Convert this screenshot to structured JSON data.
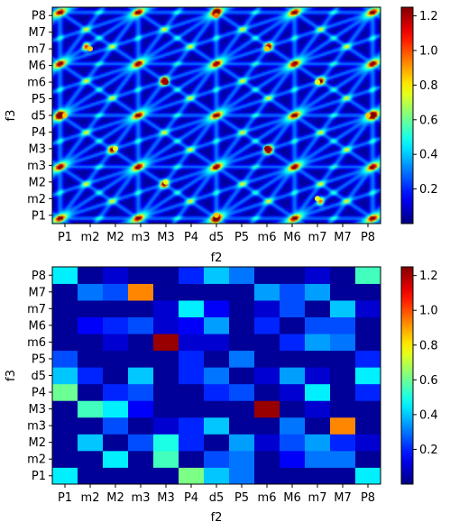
{
  "chart_data": [
    {
      "type": "heatmap",
      "xlabel": "f2",
      "ylabel": "f3",
      "x_ticks": [
        "P1",
        "m2",
        "M2",
        "m3",
        "M3",
        "P4",
        "d5",
        "P5",
        "m6",
        "M6",
        "m7",
        "M7",
        "P8"
      ],
      "y_ticks": [
        "P1",
        "m2",
        "M2",
        "m3",
        "M3",
        "P4",
        "d5",
        "P5",
        "m6",
        "M6",
        "m7",
        "M7",
        "P8"
      ],
      "colormap": "jet",
      "color_range": [
        0.0,
        1.25
      ],
      "colorbar_ticks": [
        "0.2",
        "0.4",
        "0.6",
        "0.8",
        "1.0",
        "1.2"
      ],
      "peaks": [
        {
          "x": "M3",
          "y": "m6",
          "value": 1.22
        },
        {
          "x": "m6",
          "y": "M3",
          "value": 1.22
        },
        {
          "x": "d5",
          "y": "P8",
          "value": 0.95
        },
        {
          "x": "d5",
          "y": "P1",
          "value": 0.85
        },
        {
          "x": "P1",
          "y": "d5",
          "value": 0.85
        },
        {
          "x": "P8",
          "y": "d5",
          "value": 0.85
        },
        {
          "x": "m2",
          "y": "m7",
          "value": 0.85
        },
        {
          "x": "m6",
          "y": "m7",
          "value": 0.85
        },
        {
          "x": "M2",
          "y": "M3",
          "value": 0.75
        },
        {
          "x": "m7",
          "y": "m6",
          "value": 0.75
        },
        {
          "x": "M3",
          "y": "M2",
          "value": 0.75
        },
        {
          "x": "m7",
          "y": "m2",
          "value": 0.75
        }
      ]
    },
    {
      "type": "heatmap",
      "xlabel": "f2",
      "ylabel": "f3",
      "x_ticks": [
        "P1",
        "m2",
        "M2",
        "m3",
        "M3",
        "P4",
        "d5",
        "P5",
        "m6",
        "M6",
        "m7",
        "M7",
        "P8"
      ],
      "y_ticks": [
        "P1",
        "m2",
        "M2",
        "m3",
        "M3",
        "P4",
        "d5",
        "P5",
        "m6",
        "M6",
        "m7",
        "M7",
        "P8"
      ],
      "colormap": "jet",
      "color_range": [
        0.0,
        1.25
      ],
      "colorbar_ticks": [
        "0.2",
        "0.4",
        "0.6",
        "0.8",
        "1.0",
        "1.2"
      ],
      "matrix_rows_bottom_to_top": [
        [
          0.45,
          0.03,
          0.03,
          0.03,
          0.03,
          0.62,
          0.4,
          0.3,
          0.03,
          0.03,
          0.03,
          0.03,
          0.45
        ],
        [
          0.03,
          0.03,
          0.45,
          0.03,
          0.55,
          0.03,
          0.25,
          0.3,
          0.03,
          0.15,
          0.3,
          0.3,
          0.03
        ],
        [
          0.03,
          0.4,
          0.03,
          0.25,
          0.5,
          0.2,
          0.03,
          0.35,
          0.1,
          0.25,
          0.35,
          0.2,
          0.1
        ],
        [
          0.03,
          0.03,
          0.25,
          0.03,
          0.1,
          0.2,
          0.4,
          0.03,
          0.03,
          0.3,
          0.03,
          0.93,
          0.03
        ],
        [
          0.03,
          0.55,
          0.45,
          0.15,
          0.03,
          0.03,
          0.03,
          0.03,
          1.22,
          0.03,
          0.1,
          0.03,
          0.03
        ],
        [
          0.6,
          0.03,
          0.2,
          0.25,
          0.03,
          0.03,
          0.2,
          0.25,
          0.03,
          0.1,
          0.45,
          0.03,
          0.2
        ],
        [
          0.4,
          0.2,
          0.03,
          0.4,
          0.03,
          0.2,
          0.3,
          0.03,
          0.1,
          0.35,
          0.1,
          0.03,
          0.45
        ],
        [
          0.25,
          0.03,
          0.03,
          0.03,
          0.03,
          0.2,
          0.03,
          0.3,
          0.03,
          0.03,
          0.03,
          0.03,
          0.2
        ],
        [
          0.03,
          0.03,
          0.1,
          0.03,
          1.22,
          0.1,
          0.1,
          0.03,
          0.03,
          0.2,
          0.35,
          0.3,
          0.03
        ],
        [
          0.03,
          0.15,
          0.2,
          0.25,
          0.1,
          0.15,
          0.35,
          0.03,
          0.2,
          0.03,
          0.25,
          0.25,
          0.03
        ],
        [
          0.03,
          0.03,
          0.03,
          0.03,
          0.1,
          0.45,
          0.15,
          0.03,
          0.1,
          0.25,
          0.03,
          0.4,
          0.1
        ],
        [
          0.03,
          0.3,
          0.25,
          0.93,
          0.03,
          0.03,
          0.03,
          0.03,
          0.35,
          0.25,
          0.35,
          0.03,
          0.03
        ],
        [
          0.45,
          0.03,
          0.1,
          0.03,
          0.03,
          0.2,
          0.4,
          0.3,
          0.03,
          0.03,
          0.1,
          0.03,
          0.55
        ]
      ]
    }
  ]
}
